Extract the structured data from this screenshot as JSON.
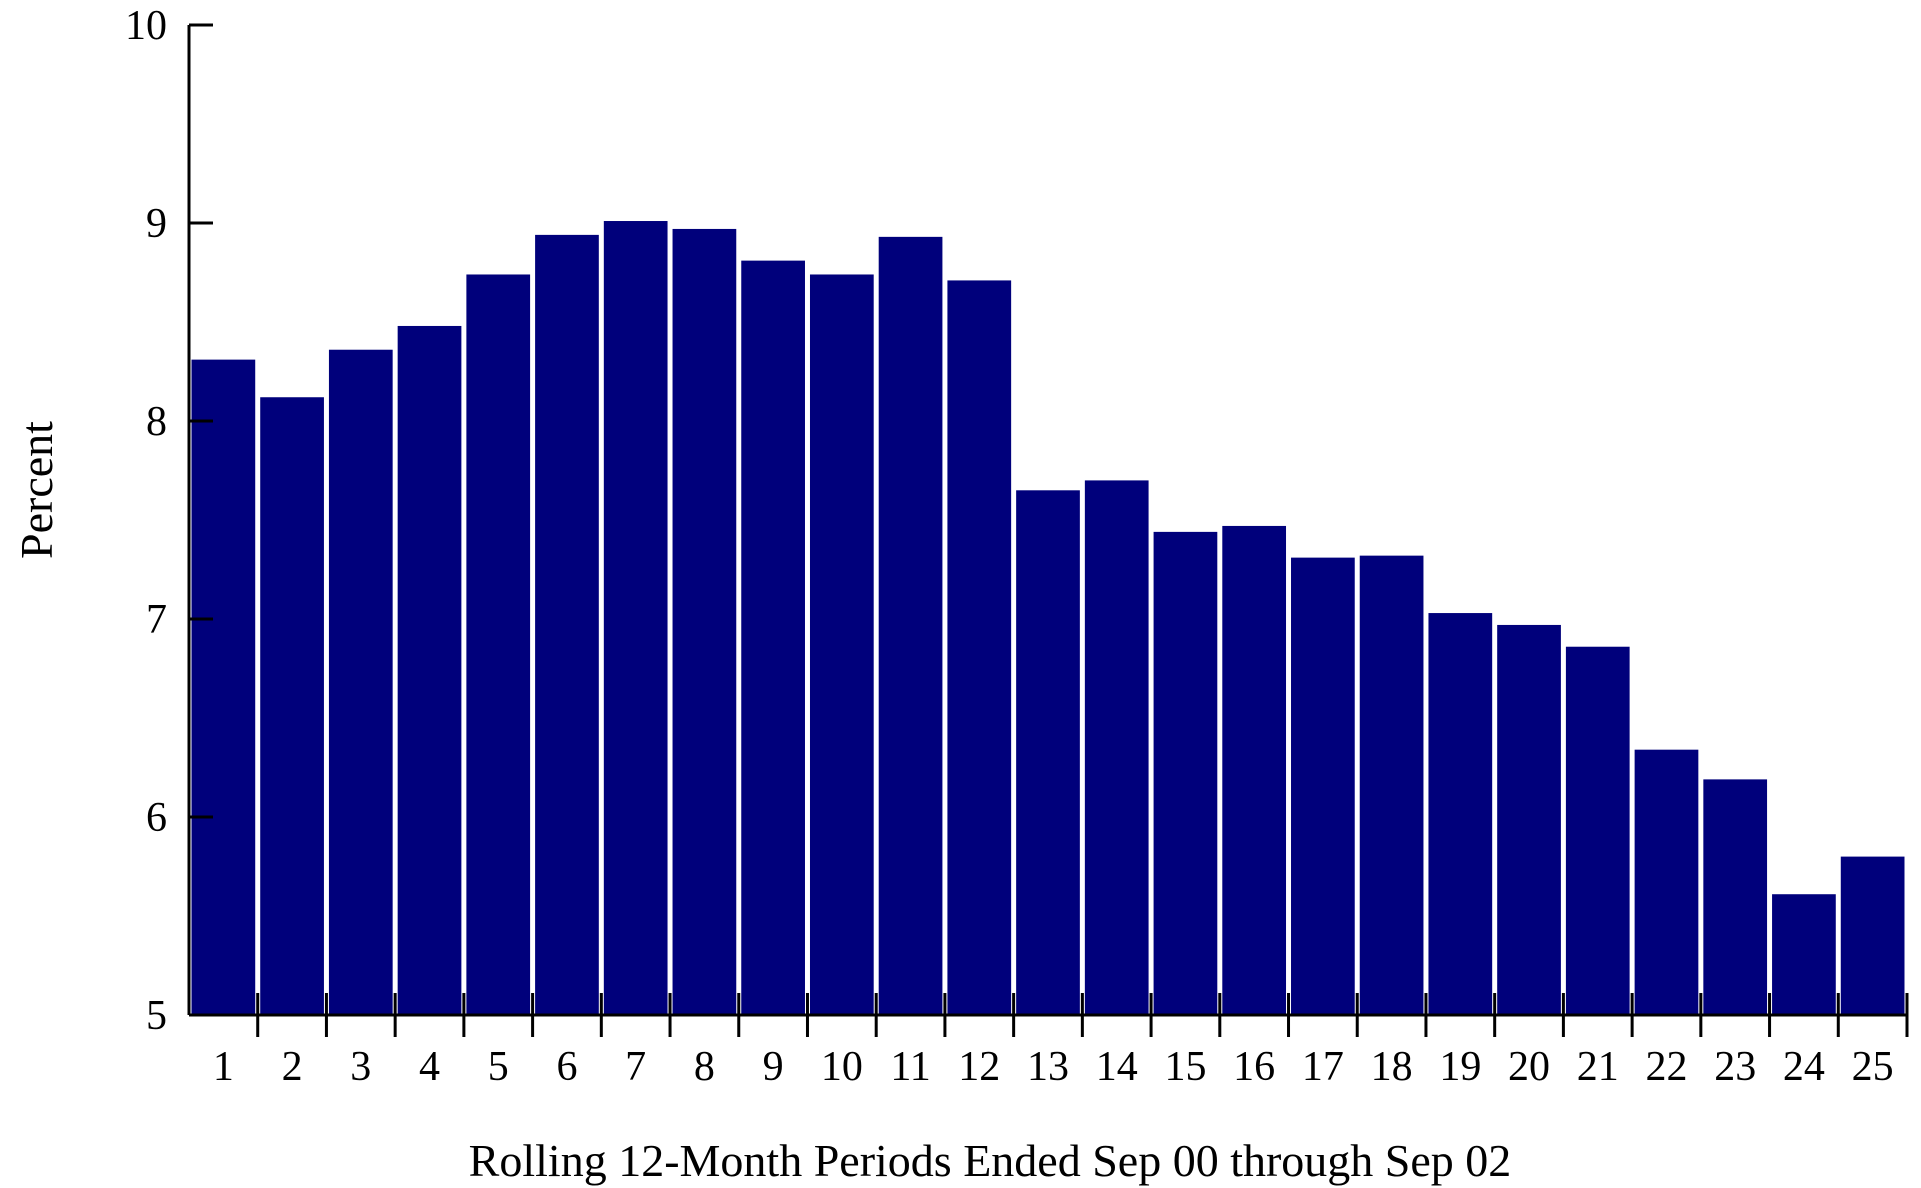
{
  "chart_data": {
    "type": "bar",
    "title": "",
    "xlabel": "Rolling 12-Month Periods Ended Sep 00 through Sep 02",
    "ylabel": "Percent",
    "ylim": [
      5,
      10
    ],
    "yticks": [
      "5",
      "6",
      "7",
      "8",
      "9",
      "10"
    ],
    "categories": [
      "1",
      "2",
      "3",
      "4",
      "5",
      "6",
      "7",
      "8",
      "9",
      "10",
      "11",
      "12",
      "13",
      "14",
      "15",
      "16",
      "17",
      "18",
      "19",
      "20",
      "21",
      "22",
      "23",
      "24",
      "25"
    ],
    "values": [
      8.31,
      8.12,
      8.36,
      8.48,
      8.74,
      8.94,
      9.01,
      8.97,
      8.81,
      8.74,
      8.93,
      8.71,
      7.65,
      7.7,
      7.44,
      7.47,
      7.31,
      7.32,
      7.03,
      6.97,
      6.86,
      6.34,
      6.19,
      5.61,
      5.8
    ],
    "grid": false,
    "legend": "none",
    "bar_color": "#00007b",
    "axis_color": "#000000"
  }
}
